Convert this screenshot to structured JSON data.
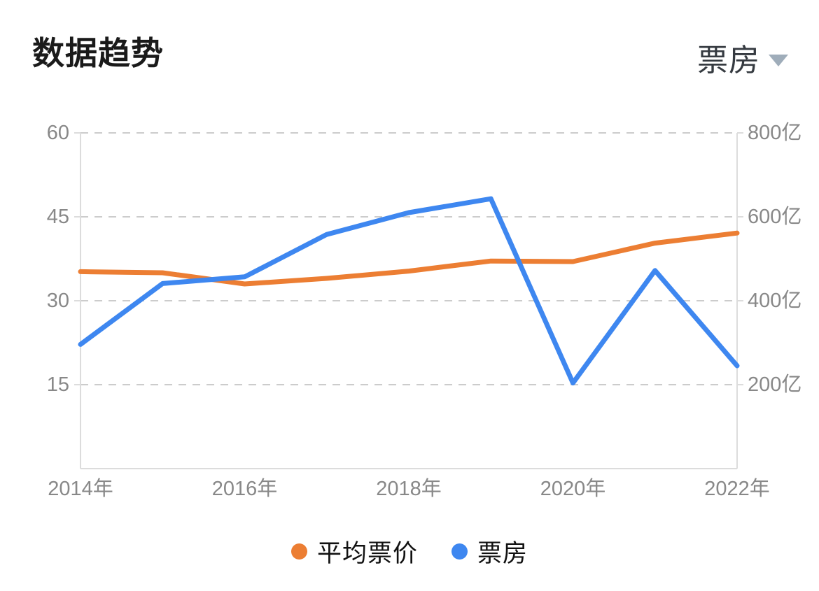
{
  "header": {
    "title": "数据趋势",
    "metric_selector": {
      "value": "票房"
    }
  },
  "chart_data": {
    "type": "line",
    "title": "数据趋势",
    "categories": [
      "2014年",
      "2015年",
      "2016年",
      "2017年",
      "2018年",
      "2019年",
      "2020年",
      "2021年",
      "2022年"
    ],
    "x_tick_labels": [
      "2014年",
      "2016年",
      "2018年",
      "2020年",
      "2022年"
    ],
    "x_tick_indices": [
      0,
      2,
      4,
      6,
      8
    ],
    "series": [
      {
        "name": "平均票价",
        "axis": "left",
        "color": "#ec7e33",
        "values": [
          35.2,
          35.0,
          33.0,
          34.0,
          35.3,
          37.1,
          37.0,
          40.3,
          42.1
        ]
      },
      {
        "name": "票房",
        "axis": "right",
        "color": "#3e87f0",
        "values": [
          296,
          441,
          457,
          558,
          610,
          643,
          204,
          472,
          245
        ]
      }
    ],
    "left_axis": {
      "range": [
        0,
        60
      ],
      "tick_values": [
        15,
        30,
        45,
        60
      ],
      "tick_labels": [
        "15",
        "30",
        "45",
        "60"
      ]
    },
    "right_axis": {
      "range": [
        0,
        800
      ],
      "tick_values": [
        200,
        400,
        600,
        800
      ],
      "tick_labels": [
        "200亿",
        "400亿",
        "600亿",
        "800亿"
      ]
    },
    "grid": "horizontal-dashed",
    "legend_position": "bottom"
  },
  "legend": {
    "items": [
      {
        "label": "平均票价"
      },
      {
        "label": "票房"
      }
    ]
  }
}
